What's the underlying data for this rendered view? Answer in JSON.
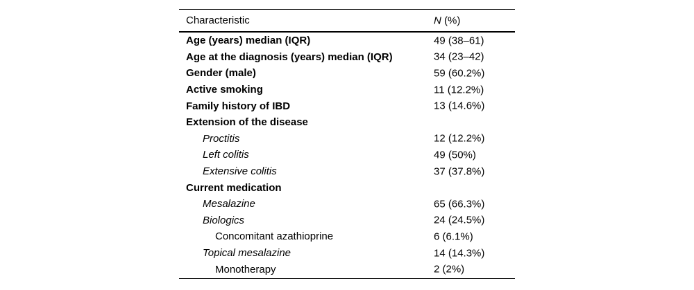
{
  "table": {
    "header": {
      "col1": "Characteristic",
      "col2_italic": "N",
      "col2_rest": " (%)"
    },
    "rows": [
      {
        "label": "Age (years) median (IQR)",
        "value": "49 (38–61)",
        "style": "bold",
        "indent": 0
      },
      {
        "label": "Age at the diagnosis (years) median (IQR)",
        "value": "34 (23–42)",
        "style": "bold",
        "indent": 0
      },
      {
        "label": "Gender (male)",
        "value": "59 (60.2%)",
        "style": "bold",
        "indent": 0
      },
      {
        "label": "Active smoking",
        "value": "11 (12.2%)",
        "style": "bold",
        "indent": 0
      },
      {
        "label": "Family history of IBD",
        "value": "13 (14.6%)",
        "style": "bold",
        "indent": 0
      },
      {
        "label": "Extension of the disease",
        "value": "",
        "style": "bold",
        "indent": 0
      },
      {
        "label": "Proctitis",
        "value": "12 (12.2%)",
        "style": "italic",
        "indent": 1
      },
      {
        "label": "Left colitis",
        "value": "49 (50%)",
        "style": "italic",
        "indent": 1
      },
      {
        "label": "Extensive colitis",
        "value": "37 (37.8%)",
        "style": "italic",
        "indent": 1
      },
      {
        "label": "Current medication",
        "value": "",
        "style": "bold",
        "indent": 0
      },
      {
        "label": "Mesalazine",
        "value": "65 (66.3%)",
        "style": "italic",
        "indent": 1
      },
      {
        "label": "Biologics",
        "value": "24 (24.5%)",
        "style": "italic",
        "indent": 1
      },
      {
        "label": "Concomitant azathioprine",
        "value": "6 (6.1%)",
        "style": "regular",
        "indent": 2
      },
      {
        "label": "Topical mesalazine",
        "value": "14 (14.3%)",
        "style": "italic",
        "indent": 1
      },
      {
        "label": "Monotherapy",
        "value": "2 (2%)",
        "style": "regular",
        "indent": 2
      }
    ]
  },
  "colors": {
    "text": "#000000",
    "background": "#ffffff",
    "rule": "#000000"
  },
  "chart_data": {
    "type": "table",
    "title": "",
    "columns": [
      "Characteristic",
      "N (%)"
    ],
    "rows": [
      [
        "Age (years) median (IQR)",
        "49 (38–61)"
      ],
      [
        "Age at the diagnosis (years) median (IQR)",
        "34 (23–42)"
      ],
      [
        "Gender (male)",
        "59 (60.2%)"
      ],
      [
        "Active smoking",
        "11 (12.2%)"
      ],
      [
        "Family history of IBD",
        "13 (14.6%)"
      ],
      [
        "Extension of the disease",
        ""
      ],
      [
        "Proctitis",
        "12 (12.2%)"
      ],
      [
        "Left colitis",
        "49 (50%)"
      ],
      [
        "Extensive colitis",
        "37 (37.8%)"
      ],
      [
        "Current medication",
        ""
      ],
      [
        "Mesalazine",
        "65 (66.3%)"
      ],
      [
        "Biologics",
        "24 (24.5%)"
      ],
      [
        "Concomitant azathioprine",
        "6 (6.1%)"
      ],
      [
        "Topical mesalazine",
        "14 (14.3%)"
      ],
      [
        "Monotherapy",
        "2 (2%)"
      ]
    ]
  }
}
